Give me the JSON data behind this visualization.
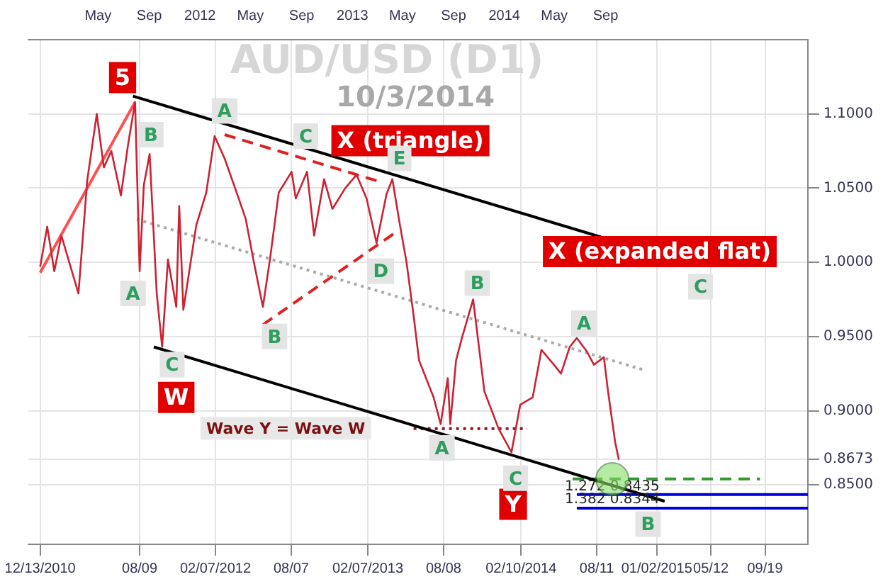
{
  "chart_data": {
    "type": "line",
    "title": "AUD/USD (D1)",
    "subtitle": "10/3/2014",
    "xlim": [
      "2010-11-15",
      "2015-12-31"
    ],
    "xticks": [
      {
        "value": "2010-12-13",
        "label": "12/13/2010"
      },
      {
        "value": "2011-08-09",
        "label": "08/09"
      },
      {
        "value": "2012-02-07",
        "label": "02/07/2012"
      },
      {
        "value": "2012-08-07",
        "label": "08/07"
      },
      {
        "value": "2013-02-07",
        "label": "02/07/2013"
      },
      {
        "value": "2013-08-08",
        "label": "08/08"
      },
      {
        "value": "2014-02-10",
        "label": "02/10/2014"
      },
      {
        "value": "2014-08-11",
        "label": "08/11"
      },
      {
        "value": "2015-01-02",
        "label": "01/02/2015"
      },
      {
        "value": "2015-05-12",
        "label": "05/12"
      },
      {
        "value": "2015-09-19",
        "label": "09/19"
      }
    ],
    "x2lim": [
      "2010-11-15",
      "2015-12-31"
    ],
    "x2ticks": [
      {
        "value": "2011-05-01",
        "label": "May"
      },
      {
        "value": "2011-09-01",
        "label": "Sep"
      },
      {
        "value": "2012-01-01",
        "label": "2012"
      },
      {
        "value": "2012-05-01",
        "label": "May"
      },
      {
        "value": "2012-09-01",
        "label": "Sep"
      },
      {
        "value": "2013-01-01",
        "label": "2013"
      },
      {
        "value": "2013-05-01",
        "label": "May"
      },
      {
        "value": "2013-09-01",
        "label": "Sep"
      },
      {
        "value": "2014-01-01",
        "label": "2014"
      },
      {
        "value": "2014-05-01",
        "label": "May"
      },
      {
        "value": "2014-09-01",
        "label": "Sep"
      }
    ],
    "ylim": [
      0.81,
      1.15
    ],
    "yticks": [
      {
        "value": 0.85,
        "label": "0.8500"
      },
      {
        "value": 0.8673,
        "label": "0.8673"
      },
      {
        "value": 0.9,
        "label": "0.9000"
      },
      {
        "value": 0.95,
        "label": "0.9500"
      },
      {
        "value": 1.0,
        "label": "1.0000"
      },
      {
        "value": 1.05,
        "label": "1.0500"
      },
      {
        "value": 1.1,
        "label": "1.1000"
      }
    ],
    "grid": true,
    "series": [
      {
        "color": "#cc2233",
        "x": [
          "2010-12-13",
          "2010-12-30",
          "2011-01-16",
          "2011-02-02",
          "2011-03-15",
          "2011-04-05",
          "2011-04-28",
          "2011-05-15",
          "2011-06-02",
          "2011-06-25",
          "2011-07-12",
          "2011-07-29",
          "2011-08-09",
          "2011-08-19",
          "2011-09-02",
          "2011-09-19",
          "2011-10-02",
          "2011-10-16",
          "2011-11-05",
          "2011-11-12",
          "2011-11-22",
          "2011-12-23",
          "2012-01-16",
          "2012-02-05",
          "2012-02-29",
          "2012-04-03",
          "2012-04-20",
          "2012-05-08",
          "2012-05-31",
          "2012-06-17",
          "2012-07-08",
          "2012-08-08",
          "2012-08-18",
          "2012-09-14",
          "2012-10-01",
          "2012-10-25",
          "2012-11-14",
          "2012-12-15",
          "2013-01-11",
          "2013-02-04",
          "2013-02-28",
          "2013-03-24",
          "2013-04-07",
          "2013-04-24",
          "2013-05-11",
          "2013-05-28",
          "2013-06-10",
          "2013-07-15",
          "2013-08-01",
          "2013-08-18",
          "2013-08-24",
          "2013-09-07",
          "2013-09-21",
          "2013-10-18",
          "2013-11-14",
          "2013-12-18",
          "2014-01-18",
          "2014-02-08",
          "2014-03-10",
          "2014-03-31",
          "2014-04-30",
          "2014-05-17",
          "2014-06-07",
          "2014-06-24",
          "2014-07-18",
          "2014-08-04",
          "2014-08-28",
          "2014-09-07",
          "2014-09-24",
          "2014-10-03"
        ],
        "values": [
          0.997,
          1.024,
          0.994,
          1.018,
          0.979,
          1.055,
          1.1,
          1.064,
          1.075,
          1.045,
          1.079,
          1.108,
          0.994,
          1.052,
          1.073,
          0.979,
          0.943,
          1.002,
          0.97,
          1.038,
          0.968,
          1.025,
          1.047,
          1.085,
          1.07,
          1.043,
          1.029,
          1.002,
          0.97,
          1.002,
          1.047,
          1.061,
          1.043,
          1.061,
          1.018,
          1.056,
          1.036,
          1.05,
          1.059,
          1.043,
          1.013,
          1.046,
          1.056,
          1.027,
          1.0,
          0.964,
          0.934,
          0.909,
          0.891,
          0.922,
          0.891,
          0.934,
          0.949,
          0.975,
          0.913,
          0.888,
          0.872,
          0.904,
          0.909,
          0.941,
          0.931,
          0.925,
          0.943,
          0.949,
          0.94,
          0.931,
          0.936,
          0.913,
          0.879,
          0.867
        ]
      },
      {
        "color": "#000000",
        "x": [
          "2011-07-24",
          "2014-08-21"
        ],
        "values": [
          1.112,
          1.017
        ]
      },
      {
        "color": "#000000",
        "x": [
          "2011-09-12",
          "2015-01-21"
        ],
        "values": [
          0.943,
          0.839
        ]
      },
      {
        "color": "#aaaaaa",
        "line_style": "dotted",
        "x": [
          "2011-08-02",
          "2014-12-08"
        ],
        "values": [
          1.029,
          0.927
        ]
      },
      {
        "color": "#e02020",
        "line_style": "dashed",
        "x": [
          "2012-02-29",
          "2013-02-28"
        ],
        "values": [
          1.086,
          1.055
        ]
      },
      {
        "color": "#e02020",
        "line_style": "dashed",
        "x": [
          "2012-05-31",
          "2013-04-14"
        ],
        "values": [
          0.958,
          1.02
        ]
      },
      {
        "color": "#ff5050",
        "x": [
          "2010-12-13",
          "2011-07-29"
        ],
        "values": [
          0.993,
          1.108
        ]
      },
      {
        "color": "#8b1a1a",
        "line_style": "dotted",
        "x": [
          "2013-05-28",
          "2014-02-25"
        ],
        "values": [
          0.888,
          0.888
        ]
      },
      {
        "color": "#339933",
        "line_style": "dashed",
        "x": [
          "2014-06-14",
          "2015-09-07"
        ],
        "values": [
          0.854,
          0.854
        ]
      },
      {
        "color": "#0000dd",
        "x": [
          "2014-06-24",
          "2015-12-31"
        ],
        "values": [
          0.8435,
          0.8435
        ]
      },
      {
        "color": "#0000dd",
        "x": [
          "2014-06-24",
          "2015-12-31"
        ],
        "values": [
          0.8344,
          0.8344
        ]
      }
    ],
    "annotations": [
      {
        "text": "5",
        "x": "2011-06-29",
        "y": 1.1245
      },
      {
        "text": "W",
        "x": "2011-11-05",
        "y": 0.909
      },
      {
        "text": "Y",
        "x": "2014-01-22",
        "y": 0.837
      },
      "X (triangle)",
      "X (expanded flat)",
      {
        "text": "A",
        "x": "2011-07-24",
        "y": 0.979
      },
      {
        "text": "B",
        "x": "2011-09-05",
        "y": 1.086
      },
      {
        "text": "C",
        "x": "2011-10-26",
        "y": 0.931
      },
      {
        "text": "A",
        "x": "2012-02-29",
        "y": 1.102
      },
      {
        "text": "B",
        "x": "2012-06-28",
        "y": 0.95
      },
      {
        "text": "C",
        "x": "2012-09-11",
        "y": 1.085
      },
      {
        "text": "D",
        "x": "2013-03-10",
        "y": 0.994
      },
      {
        "text": "E",
        "x": "2013-04-24",
        "y": 1.07
      },
      {
        "text": "A",
        "x": "2013-08-04",
        "y": 0.875
      },
      {
        "text": "B",
        "x": "2013-10-28",
        "y": 0.986
      },
      {
        "text": "C",
        "x": "2014-01-28",
        "y": 0.8545
      },
      {
        "text": "A",
        "x": "2014-07-11",
        "y": 0.959
      },
      {
        "text": "B",
        "x": "2014-12-12",
        "y": 0.8236
      },
      {
        "text": "C",
        "x": "2015-04-17",
        "y": 0.9836
      },
      "Wave Y = Wave W",
      {
        "text": "1.272 0.8435",
        "x": "2014-09-17",
        "y": 0.849
      },
      {
        "text": "1.382 0.8344",
        "x": "2014-09-17",
        "y": 0.84
      }
    ]
  }
}
